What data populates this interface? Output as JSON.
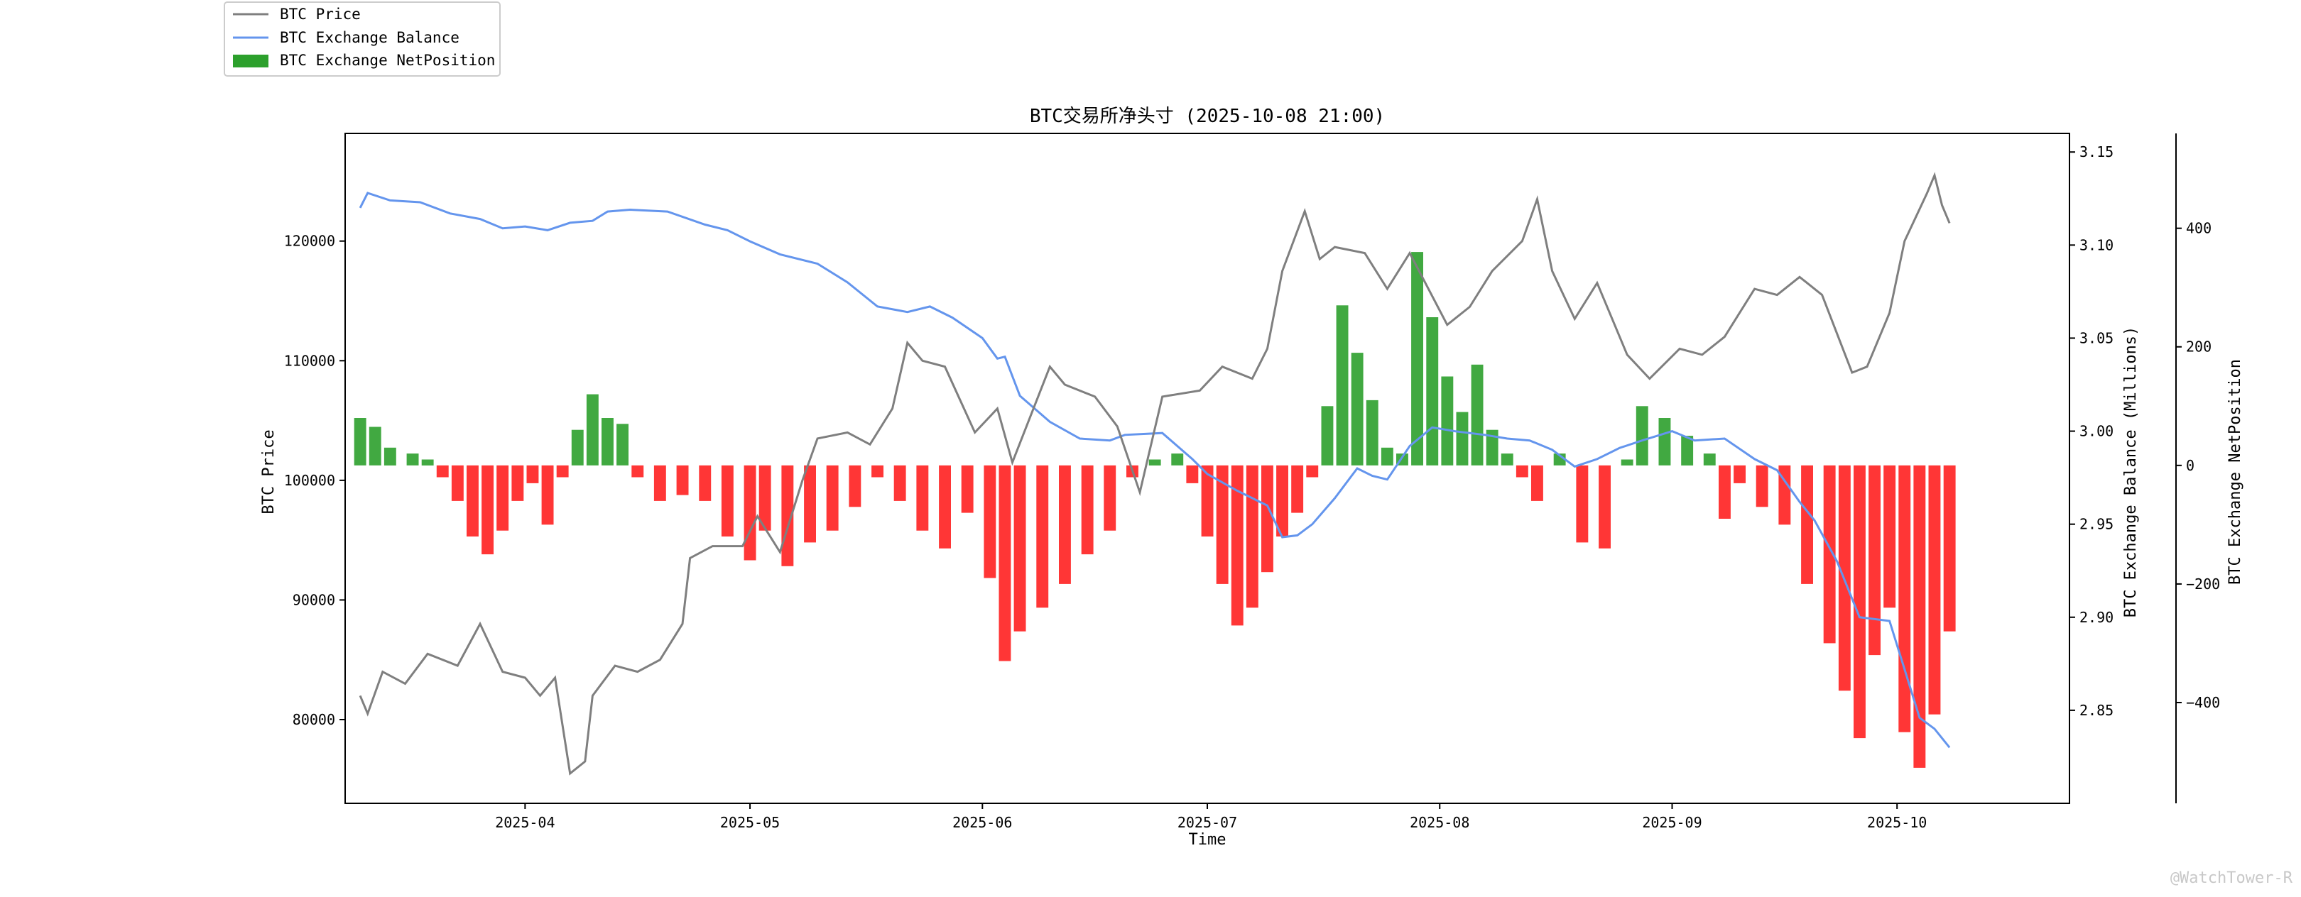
{
  "chart_data": {
    "type": "line",
    "title": "BTC交易所净头寸 (2025-10-08 21:00)",
    "xlabel": "Time",
    "x_range": [
      "2025-03-08",
      "2025-10-24"
    ],
    "x_ticks": [
      "2025-04",
      "2025-05",
      "2025-06",
      "2025-07",
      "2025-08",
      "2025-09",
      "2025-10"
    ],
    "x_tick_dates": [
      "2025-04-01",
      "2025-05-01",
      "2025-06-01",
      "2025-07-01",
      "2025-08-01",
      "2025-09-01",
      "2025-10-01"
    ],
    "axes": {
      "price": {
        "label": "BTC Price",
        "range": [
          73000,
          129000
        ],
        "ticks": [
          80000,
          90000,
          100000,
          110000,
          120000
        ]
      },
      "balance": {
        "label": "BTC Exchange Balance (Millions)",
        "range": [
          2.8,
          3.16
        ],
        "ticks": [
          2.85,
          2.9,
          2.95,
          3.0,
          3.05,
          3.1,
          3.15
        ]
      },
      "netposition": {
        "label": "BTC Exchange NetPosition",
        "range": [
          -570,
          560
        ],
        "ticks": [
          -400,
          -200,
          0,
          200,
          400
        ]
      }
    },
    "legend": {
      "placement": "top-left",
      "entries": [
        "BTC Price",
        "BTC Exchange Balance",
        "BTC Exchange NetPosition"
      ]
    },
    "colors": {
      "price": "#7f7f7f",
      "balance": "#6495ed",
      "positive": "#2ca02c",
      "negative": "#ff2020"
    },
    "series": [
      {
        "name": "BTC Price",
        "axis": "price",
        "points": [
          [
            "2025-03-10",
            82000
          ],
          [
            "2025-03-11",
            80500
          ],
          [
            "2025-03-13",
            84000
          ],
          [
            "2025-03-16",
            83000
          ],
          [
            "2025-03-19",
            85500
          ],
          [
            "2025-03-23",
            84500
          ],
          [
            "2025-03-26",
            88000
          ],
          [
            "2025-03-29",
            84000
          ],
          [
            "2025-04-01",
            83500
          ],
          [
            "2025-04-03",
            82000
          ],
          [
            "2025-04-05",
            83500
          ],
          [
            "2025-04-07",
            75500
          ],
          [
            "2025-04-09",
            76500
          ],
          [
            "2025-04-10",
            82000
          ],
          [
            "2025-04-13",
            84500
          ],
          [
            "2025-04-16",
            84000
          ],
          [
            "2025-04-19",
            85000
          ],
          [
            "2025-04-22",
            88000
          ],
          [
            "2025-04-23",
            93500
          ],
          [
            "2025-04-26",
            94500
          ],
          [
            "2025-04-30",
            94500
          ],
          [
            "2025-05-02",
            97000
          ],
          [
            "2025-05-05",
            94000
          ],
          [
            "2025-05-08",
            100000
          ],
          [
            "2025-05-10",
            103500
          ],
          [
            "2025-05-14",
            104000
          ],
          [
            "2025-05-17",
            103000
          ],
          [
            "2025-05-20",
            106000
          ],
          [
            "2025-05-22",
            111500
          ],
          [
            "2025-05-24",
            110000
          ],
          [
            "2025-05-27",
            109500
          ],
          [
            "2025-05-31",
            104000
          ],
          [
            "2025-06-03",
            106000
          ],
          [
            "2025-06-05",
            101500
          ],
          [
            "2025-06-10",
            109500
          ],
          [
            "2025-06-12",
            108000
          ],
          [
            "2025-06-16",
            107000
          ],
          [
            "2025-06-19",
            104500
          ],
          [
            "2025-06-22",
            99000
          ],
          [
            "2025-06-25",
            107000
          ],
          [
            "2025-06-30",
            107500
          ],
          [
            "2025-07-03",
            109500
          ],
          [
            "2025-07-07",
            108500
          ],
          [
            "2025-07-09",
            111000
          ],
          [
            "2025-07-11",
            117500
          ],
          [
            "2025-07-14",
            122500
          ],
          [
            "2025-07-16",
            118500
          ],
          [
            "2025-07-18",
            119500
          ],
          [
            "2025-07-22",
            119000
          ],
          [
            "2025-07-25",
            116000
          ],
          [
            "2025-07-28",
            119000
          ],
          [
            "2025-08-02",
            113000
          ],
          [
            "2025-08-05",
            114500
          ],
          [
            "2025-08-08",
            117500
          ],
          [
            "2025-08-12",
            120000
          ],
          [
            "2025-08-14",
            123500
          ],
          [
            "2025-08-16",
            117500
          ],
          [
            "2025-08-19",
            113500
          ],
          [
            "2025-08-22",
            116500
          ],
          [
            "2025-08-26",
            110500
          ],
          [
            "2025-08-29",
            108500
          ],
          [
            "2025-09-02",
            111000
          ],
          [
            "2025-09-05",
            110500
          ],
          [
            "2025-09-08",
            112000
          ],
          [
            "2025-09-12",
            116000
          ],
          [
            "2025-09-15",
            115500
          ],
          [
            "2025-09-18",
            117000
          ],
          [
            "2025-09-21",
            115500
          ],
          [
            "2025-09-25",
            109000
          ],
          [
            "2025-09-27",
            109500
          ],
          [
            "2025-09-30",
            114000
          ],
          [
            "2025-10-02",
            120000
          ],
          [
            "2025-10-05",
            124000
          ],
          [
            "2025-10-06",
            125500
          ],
          [
            "2025-10-07",
            123000
          ],
          [
            "2025-10-08",
            121500
          ]
        ]
      },
      {
        "name": "BTC Exchange Balance",
        "axis": "balance",
        "points": [
          [
            "2025-03-10",
            3.12
          ],
          [
            "2025-03-11",
            3.128
          ],
          [
            "2025-03-14",
            3.124
          ],
          [
            "2025-03-18",
            3.123
          ],
          [
            "2025-03-22",
            3.117
          ],
          [
            "2025-03-26",
            3.114
          ],
          [
            "2025-03-29",
            3.109
          ],
          [
            "2025-04-01",
            3.11
          ],
          [
            "2025-04-04",
            3.108
          ],
          [
            "2025-04-07",
            3.112
          ],
          [
            "2025-04-10",
            3.113
          ],
          [
            "2025-04-12",
            3.118
          ],
          [
            "2025-04-15",
            3.119
          ],
          [
            "2025-04-20",
            3.118
          ],
          [
            "2025-04-25",
            3.111
          ],
          [
            "2025-04-28",
            3.108
          ],
          [
            "2025-05-01",
            3.102
          ],
          [
            "2025-05-05",
            3.095
          ],
          [
            "2025-05-10",
            3.09
          ],
          [
            "2025-05-14",
            3.08
          ],
          [
            "2025-05-18",
            3.067
          ],
          [
            "2025-05-22",
            3.064
          ],
          [
            "2025-05-25",
            3.067
          ],
          [
            "2025-05-28",
            3.061
          ],
          [
            "2025-06-01",
            3.05
          ],
          [
            "2025-06-03",
            3.039
          ],
          [
            "2025-06-04",
            3.04
          ],
          [
            "2025-06-06",
            3.019
          ],
          [
            "2025-06-10",
            3.005
          ],
          [
            "2025-06-14",
            2.996
          ],
          [
            "2025-06-18",
            2.995
          ],
          [
            "2025-06-20",
            2.998
          ],
          [
            "2025-06-25",
            2.999
          ],
          [
            "2025-06-29",
            2.985
          ],
          [
            "2025-07-01",
            2.977
          ],
          [
            "2025-07-05",
            2.968
          ],
          [
            "2025-07-09",
            2.96
          ],
          [
            "2025-07-11",
            2.943
          ],
          [
            "2025-07-13",
            2.944
          ],
          [
            "2025-07-15",
            2.95
          ],
          [
            "2025-07-18",
            2.964
          ],
          [
            "2025-07-21",
            2.98
          ],
          [
            "2025-07-23",
            2.976
          ],
          [
            "2025-07-25",
            2.974
          ],
          [
            "2025-07-28",
            2.992
          ],
          [
            "2025-07-31",
            3.002
          ],
          [
            "2025-08-03",
            3.0
          ],
          [
            "2025-08-07",
            2.998
          ],
          [
            "2025-08-10",
            2.996
          ],
          [
            "2025-08-13",
            2.995
          ],
          [
            "2025-08-16",
            2.99
          ],
          [
            "2025-08-19",
            2.981
          ],
          [
            "2025-08-22",
            2.985
          ],
          [
            "2025-08-25",
            2.991
          ],
          [
            "2025-08-28",
            2.995
          ],
          [
            "2025-09-01",
            3.0
          ],
          [
            "2025-09-04",
            2.995
          ],
          [
            "2025-09-08",
            2.996
          ],
          [
            "2025-09-12",
            2.985
          ],
          [
            "2025-09-15",
            2.979
          ],
          [
            "2025-09-18",
            2.962
          ],
          [
            "2025-09-20",
            2.952
          ],
          [
            "2025-09-23",
            2.93
          ],
          [
            "2025-09-26",
            2.9
          ],
          [
            "2025-09-30",
            2.898
          ],
          [
            "2025-10-02",
            2.872
          ],
          [
            "2025-10-04",
            2.846
          ],
          [
            "2025-10-06",
            2.84
          ],
          [
            "2025-10-08",
            2.83
          ]
        ]
      },
      {
        "name": "BTC Exchange NetPosition",
        "axis": "netposition",
        "type": "bar",
        "points": [
          [
            "2025-03-10",
            80
          ],
          [
            "2025-03-12",
            65
          ],
          [
            "2025-03-14",
            30
          ],
          [
            "2025-03-17",
            20
          ],
          [
            "2025-03-19",
            10
          ],
          [
            "2025-03-21",
            -20
          ],
          [
            "2025-03-23",
            -60
          ],
          [
            "2025-03-25",
            -120
          ],
          [
            "2025-03-27",
            -150
          ],
          [
            "2025-03-29",
            -110
          ],
          [
            "2025-03-31",
            -60
          ],
          [
            "2025-04-02",
            -30
          ],
          [
            "2025-04-04",
            -100
          ],
          [
            "2025-04-06",
            -20
          ],
          [
            "2025-04-08",
            60
          ],
          [
            "2025-04-10",
            120
          ],
          [
            "2025-04-12",
            80
          ],
          [
            "2025-04-14",
            70
          ],
          [
            "2025-04-16",
            -20
          ],
          [
            "2025-04-19",
            -60
          ],
          [
            "2025-04-22",
            -50
          ],
          [
            "2025-04-25",
            -60
          ],
          [
            "2025-04-28",
            -120
          ],
          [
            "2025-05-01",
            -160
          ],
          [
            "2025-05-03",
            -110
          ],
          [
            "2025-05-06",
            -170
          ],
          [
            "2025-05-09",
            -130
          ],
          [
            "2025-05-12",
            -110
          ],
          [
            "2025-05-15",
            -70
          ],
          [
            "2025-05-18",
            -20
          ],
          [
            "2025-05-21",
            -60
          ],
          [
            "2025-05-24",
            -110
          ],
          [
            "2025-05-27",
            -140
          ],
          [
            "2025-05-30",
            -80
          ],
          [
            "2025-06-02",
            -190
          ],
          [
            "2025-06-04",
            -330
          ],
          [
            "2025-06-06",
            -280
          ],
          [
            "2025-06-09",
            -240
          ],
          [
            "2025-06-12",
            -200
          ],
          [
            "2025-06-15",
            -150
          ],
          [
            "2025-06-18",
            -110
          ],
          [
            "2025-06-21",
            -20
          ],
          [
            "2025-06-24",
            10
          ],
          [
            "2025-06-27",
            20
          ],
          [
            "2025-06-29",
            -30
          ],
          [
            "2025-07-01",
            -120
          ],
          [
            "2025-07-03",
            -200
          ],
          [
            "2025-07-05",
            -270
          ],
          [
            "2025-07-07",
            -240
          ],
          [
            "2025-07-09",
            -180
          ],
          [
            "2025-07-11",
            -120
          ],
          [
            "2025-07-13",
            -80
          ],
          [
            "2025-07-15",
            -20
          ],
          [
            "2025-07-17",
            100
          ],
          [
            "2025-07-19",
            270
          ],
          [
            "2025-07-21",
            190
          ],
          [
            "2025-07-23",
            110
          ],
          [
            "2025-07-25",
            30
          ],
          [
            "2025-07-27",
            20
          ],
          [
            "2025-07-29",
            360
          ],
          [
            "2025-07-31",
            250
          ],
          [
            "2025-08-02",
            150
          ],
          [
            "2025-08-04",
            90
          ],
          [
            "2025-08-06",
            170
          ],
          [
            "2025-08-08",
            60
          ],
          [
            "2025-08-10",
            20
          ],
          [
            "2025-08-12",
            -20
          ],
          [
            "2025-08-14",
            -60
          ],
          [
            "2025-08-17",
            20
          ],
          [
            "2025-08-20",
            -130
          ],
          [
            "2025-08-23",
            -140
          ],
          [
            "2025-08-26",
            10
          ],
          [
            "2025-08-28",
            100
          ],
          [
            "2025-08-31",
            80
          ],
          [
            "2025-09-03",
            50
          ],
          [
            "2025-09-06",
            20
          ],
          [
            "2025-09-08",
            -90
          ],
          [
            "2025-09-10",
            -30
          ],
          [
            "2025-09-13",
            -70
          ],
          [
            "2025-09-16",
            -100
          ],
          [
            "2025-09-19",
            -200
          ],
          [
            "2025-09-22",
            -300
          ],
          [
            "2025-09-24",
            -380
          ],
          [
            "2025-09-26",
            -460
          ],
          [
            "2025-09-28",
            -320
          ],
          [
            "2025-09-30",
            -240
          ],
          [
            "2025-10-02",
            -450
          ],
          [
            "2025-10-04",
            -510
          ],
          [
            "2025-10-06",
            -420
          ],
          [
            "2025-10-08",
            -280
          ]
        ]
      }
    ],
    "watermark": "@WatchTower-R"
  }
}
